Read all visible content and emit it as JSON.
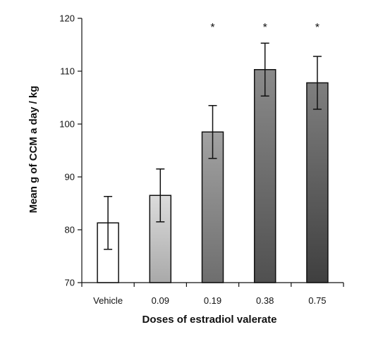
{
  "chart_data": {
    "type": "bar",
    "xlabel": "Doses of estradiol valerate",
    "ylabel": "Mean g of CCM a day / kg",
    "categories": [
      "Vehicle",
      "0.09",
      "0.19",
      "0.38",
      "0.75"
    ],
    "values": [
      81.3,
      86.5,
      98.5,
      110.3,
      107.8
    ],
    "error": [
      5.0,
      5.0,
      5.0,
      5.0,
      5.0
    ],
    "significance": [
      "",
      "",
      "*",
      "*",
      "*"
    ],
    "ylim": [
      70,
      120
    ],
    "yticks": [
      70,
      80,
      90,
      100,
      110,
      120
    ],
    "grid": false,
    "legend": "none"
  },
  "colors": {
    "axis": "#111111",
    "bar_outline": "#111111",
    "bar_fills": [
      [
        "#ffffff",
        "#ffffff"
      ],
      [
        "#dcdcdc",
        "#a9a9a9"
      ],
      [
        "#a2a2a2",
        "#6e6e6e"
      ],
      [
        "#8a8a8a",
        "#505050"
      ],
      [
        "#7f7f7f",
        "#3f3f3f"
      ]
    ]
  }
}
